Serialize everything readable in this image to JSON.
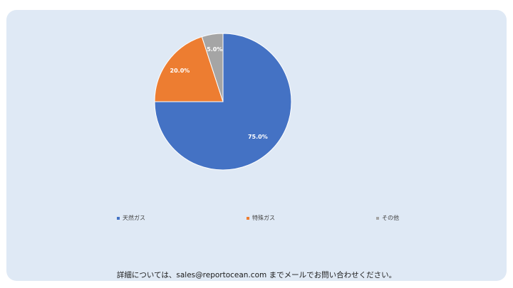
{
  "chart_data": {
    "type": "pie",
    "categories": [
      "天然ガス",
      "特殊ガス",
      "その他"
    ],
    "values": [
      75.0,
      20.0,
      5.0
    ],
    "data_labels": [
      "75.0%",
      "20.0%",
      "5.0%"
    ],
    "colors": [
      "#4472c4",
      "#ed7d31",
      "#a5a5a5"
    ],
    "title": "",
    "legend_position": "bottom"
  },
  "footer": {
    "text": "詳細については、sales@reportocean.com までメールでお問い合わせください。"
  }
}
